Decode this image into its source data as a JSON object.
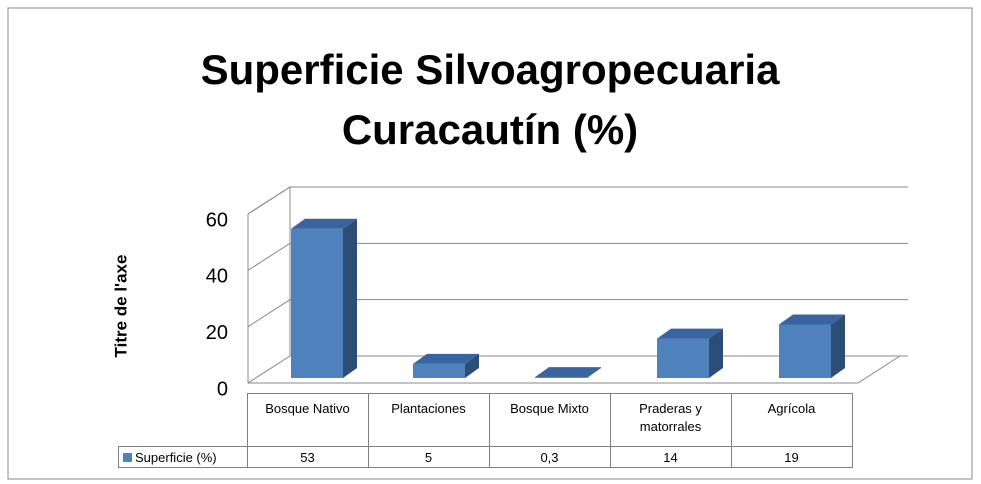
{
  "chart_data": {
    "type": "bar",
    "title": "Superficie Silvoagropecuaria Curacautín (%)",
    "y_axis_label": "Titre de l'axe",
    "categories": [
      "Bosque Nativo",
      "Plantaciones",
      "Bosque Mixto",
      "Praderas y matorrales",
      "Agrícola"
    ],
    "series": [
      {
        "name": "Superficie (%)",
        "color": "#4f81bd",
        "values": [
          53,
          5,
          0.3,
          14,
          19
        ],
        "value_labels": [
          "53",
          "5",
          "0,3",
          "14",
          "19"
        ]
      }
    ],
    "ylim": [
      0,
      60
    ],
    "yticks": [
      0,
      20,
      40,
      60
    ],
    "grid": true
  }
}
